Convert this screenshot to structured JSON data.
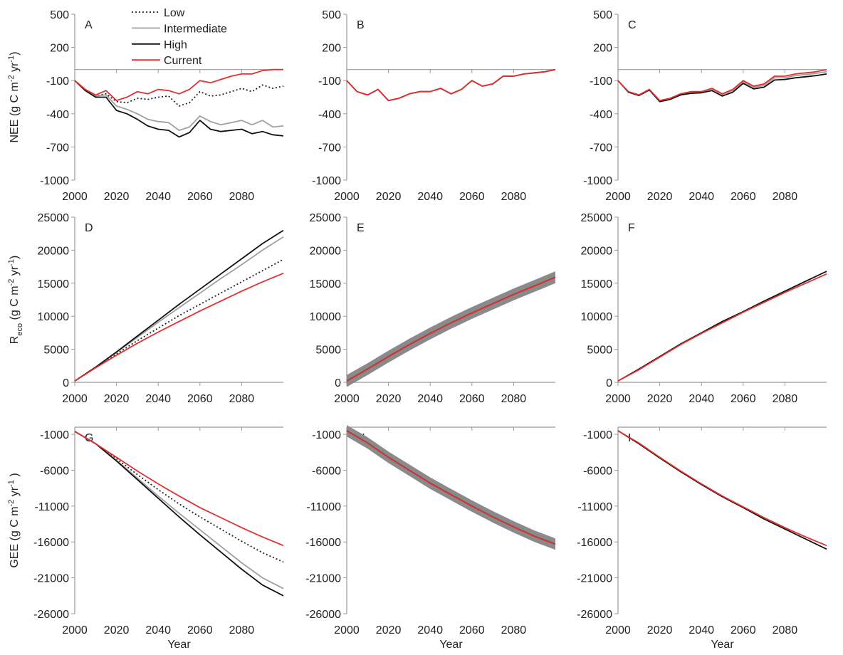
{
  "chart_data": [
    {
      "type": "line",
      "label": "A",
      "legend": "upper center",
      "ylabel": [
        {
          "text": "NEE (g C m"
        },
        {
          "text": "-2",
          "shift": "super"
        },
        {
          "text": " yr"
        },
        {
          "text": "-1",
          "shift": "super"
        },
        {
          "text": ")"
        }
      ],
      "x": [
        2000,
        2005,
        2010,
        2015,
        2020,
        2025,
        2030,
        2035,
        2040,
        2045,
        2050,
        2055,
        2060,
        2065,
        2070,
        2075,
        2080,
        2085,
        2090,
        2095,
        2100
      ],
      "xlim": [
        2000,
        2100
      ],
      "xticks": [
        2000,
        2020,
        2040,
        2060,
        2080
      ],
      "ylim": [
        -1000,
        500
      ],
      "yticks": [
        -1000,
        -700,
        -400,
        -100,
        200,
        500
      ],
      "series": [
        {
          "name": "Low",
          "color": "#222222",
          "dash": "dotted",
          "values": [
            -100,
            -180,
            -240,
            -220,
            -290,
            -300,
            -260,
            -270,
            -250,
            -240,
            -330,
            -300,
            -200,
            -240,
            -230,
            -200,
            -170,
            -200,
            -140,
            -170,
            -150
          ]
        },
        {
          "name": "Intermediate",
          "color": "#a0a0a0",
          "values": [
            -100,
            -180,
            -240,
            -230,
            -330,
            -360,
            -400,
            -450,
            -470,
            -480,
            -550,
            -520,
            -420,
            -470,
            -500,
            -480,
            -460,
            -500,
            -460,
            -520,
            -510
          ]
        },
        {
          "name": "High",
          "color": "#111111",
          "values": [
            -100,
            -190,
            -250,
            -250,
            -370,
            -400,
            -450,
            -510,
            -540,
            -550,
            -610,
            -570,
            -460,
            -540,
            -560,
            -550,
            -540,
            -580,
            -560,
            -590,
            -600
          ]
        },
        {
          "name": "Current",
          "color": "#e0312f",
          "values": [
            -100,
            -180,
            -230,
            -190,
            -280,
            -250,
            -200,
            -220,
            -180,
            -190,
            -220,
            -180,
            -100,
            -120,
            -90,
            -60,
            -40,
            -40,
            -10,
            0,
            0
          ]
        }
      ]
    },
    {
      "type": "line",
      "label": "B",
      "x": [
        2000,
        2005,
        2010,
        2015,
        2020,
        2025,
        2030,
        2035,
        2040,
        2045,
        2050,
        2055,
        2060,
        2065,
        2070,
        2075,
        2080,
        2085,
        2090,
        2095,
        2100
      ],
      "xlim": [
        2000,
        2100
      ],
      "xticks": [
        2000,
        2020,
        2040,
        2060,
        2080
      ],
      "ylim": [
        -1000,
        500
      ],
      "yticks": [
        -1000,
        -700,
        -400,
        -100,
        200,
        500
      ],
      "series": [
        {
          "color": "#111111",
          "values": [
            -100,
            -200,
            -230,
            -180,
            -280,
            -260,
            -220,
            -200,
            -200,
            -170,
            -220,
            -180,
            -100,
            -150,
            -130,
            -60,
            -60,
            -40,
            -30,
            -20,
            0
          ]
        },
        {
          "color": "#e0312f",
          "values": [
            -100,
            -200,
            -230,
            -180,
            -280,
            -260,
            -220,
            -200,
            -200,
            -170,
            -220,
            -180,
            -100,
            -150,
            -130,
            -60,
            -60,
            -40,
            -30,
            -20,
            0
          ]
        }
      ]
    },
    {
      "type": "line",
      "label": "C",
      "x": [
        2000,
        2005,
        2010,
        2015,
        2020,
        2025,
        2030,
        2035,
        2040,
        2045,
        2050,
        2055,
        2060,
        2065,
        2070,
        2075,
        2080,
        2085,
        2090,
        2095,
        2100
      ],
      "xlim": [
        2000,
        2100
      ],
      "xticks": [
        2000,
        2020,
        2040,
        2060,
        2080
      ],
      "ylim": [
        -1000,
        500
      ],
      "yticks": [
        -1000,
        -700,
        -400,
        -100,
        200,
        500
      ],
      "series": [
        {
          "color": "#a0a0a0",
          "values": [
            -100,
            -200,
            -230,
            -180,
            -280,
            -260,
            -220,
            -205,
            -200,
            -175,
            -225,
            -190,
            -110,
            -160,
            -145,
            -75,
            -75,
            -55,
            -45,
            -35,
            -20
          ]
        },
        {
          "color": "#111111",
          "values": [
            -100,
            -205,
            -235,
            -185,
            -290,
            -270,
            -230,
            -215,
            -210,
            -190,
            -240,
            -205,
            -125,
            -175,
            -160,
            -95,
            -90,
            -75,
            -65,
            -55,
            -40
          ]
        },
        {
          "color": "#e0312f",
          "values": [
            -100,
            -200,
            -230,
            -180,
            -280,
            -260,
            -220,
            -200,
            -200,
            -170,
            -220,
            -180,
            -100,
            -150,
            -130,
            -60,
            -60,
            -40,
            -30,
            -20,
            0
          ]
        }
      ]
    },
    {
      "type": "line",
      "label": "D",
      "ylabel": [
        {
          "text": "R"
        },
        {
          "text": "eco",
          "shift": "sub"
        },
        {
          "text": " (g C m"
        },
        {
          "text": "-2",
          "shift": "super"
        },
        {
          "text": " yr"
        },
        {
          "text": "-1",
          "shift": "super"
        },
        {
          "text": ")"
        }
      ],
      "x": [
        2000,
        2010,
        2020,
        2030,
        2040,
        2050,
        2060,
        2070,
        2080,
        2090,
        2100
      ],
      "xlim": [
        2000,
        2100
      ],
      "xticks": [
        2000,
        2020,
        2040,
        2060,
        2080
      ],
      "ylim": [
        0,
        25000
      ],
      "yticks": [
        0,
        5000,
        10000,
        15000,
        20000,
        25000
      ],
      "series": [
        {
          "color": "#222222",
          "dash": "dotted",
          "values": [
            200,
            2200,
            4300,
            6300,
            8200,
            10100,
            11800,
            13500,
            15200,
            16900,
            18600
          ]
        },
        {
          "color": "#a0a0a0",
          "values": [
            200,
            2300,
            4500,
            6800,
            9100,
            11300,
            13500,
            15700,
            17800,
            20000,
            22000
          ]
        },
        {
          "color": "#111111",
          "values": [
            200,
            2300,
            4600,
            7000,
            9400,
            11800,
            14100,
            16400,
            18700,
            21000,
            23000
          ]
        },
        {
          "color": "#e0312f",
          "values": [
            200,
            2200,
            4100,
            5900,
            7600,
            9200,
            10800,
            12300,
            13800,
            15200,
            16500
          ]
        }
      ]
    },
    {
      "type": "line",
      "label": "E",
      "x": [
        2000,
        2010,
        2020,
        2030,
        2040,
        2050,
        2060,
        2070,
        2080,
        2090,
        2100
      ],
      "xlim": [
        2000,
        2100
      ],
      "xticks": [
        2000,
        2020,
        2040,
        2060,
        2080
      ],
      "ylim": [
        0,
        25000
      ],
      "yticks": [
        0,
        5000,
        10000,
        15000,
        20000,
        25000
      ],
      "bands": [
        {
          "color": "#8a8a8a",
          "lower": [
            -700,
            1100,
            3000,
            4800,
            6500,
            8100,
            9600,
            11000,
            12400,
            13700,
            15000
          ],
          "upper": [
            1100,
            2900,
            4800,
            6600,
            8300,
            9900,
            11400,
            12800,
            14200,
            15500,
            16800
          ]
        }
      ],
      "series": [
        {
          "color": "#111111",
          "values": [
            200,
            2000,
            3900,
            5700,
            7400,
            9000,
            10500,
            11900,
            13300,
            14600,
            15900
          ]
        },
        {
          "color": "#e0312f",
          "values": [
            200,
            2000,
            3900,
            5700,
            7400,
            9000,
            10500,
            11900,
            13300,
            14600,
            15900
          ]
        }
      ]
    },
    {
      "type": "line",
      "label": "F",
      "x": [
        2000,
        2010,
        2020,
        2030,
        2040,
        2050,
        2060,
        2070,
        2080,
        2090,
        2100
      ],
      "xlim": [
        2000,
        2100
      ],
      "xticks": [
        2000,
        2020,
        2040,
        2060,
        2080
      ],
      "ylim": [
        0,
        25000
      ],
      "yticks": [
        0,
        5000,
        10000,
        15000,
        20000,
        25000
      ],
      "series": [
        {
          "color": "#111111",
          "values": [
            200,
            2000,
            3900,
            5800,
            7500,
            9200,
            10700,
            12300,
            13800,
            15300,
            16800
          ]
        },
        {
          "color": "#e0312f",
          "values": [
            200,
            1900,
            3800,
            5700,
            7400,
            9000,
            10600,
            12100,
            13600,
            15000,
            16400
          ]
        }
      ]
    },
    {
      "type": "line",
      "label": "G",
      "xlabel": "Year",
      "ylabel": [
        {
          "text": "GEE (g C m"
        },
        {
          "text": "-2",
          "shift": "super"
        },
        {
          "text": " yr"
        },
        {
          "text": "-1",
          "shift": "super"
        },
        {
          "text": " )"
        }
      ],
      "x": [
        2000,
        2010,
        2020,
        2030,
        2040,
        2050,
        2060,
        2070,
        2080,
        2090,
        2100
      ],
      "xlim": [
        2000,
        2100
      ],
      "xticks": [
        2000,
        2020,
        2040,
        2060,
        2080
      ],
      "ylim": [
        -26000,
        0
      ],
      "yticks": [
        -26000,
        -21000,
        -16000,
        -11000,
        -6000,
        -1000
      ],
      "series": [
        {
          "color": "#222222",
          "dash": "dotted",
          "values": [
            -600,
            -2300,
            -4400,
            -6600,
            -8700,
            -10700,
            -12500,
            -14200,
            -15900,
            -17500,
            -18800
          ]
        },
        {
          "color": "#a0a0a0",
          "values": [
            -600,
            -2300,
            -4600,
            -7100,
            -9600,
            -12000,
            -14300,
            -16600,
            -18900,
            -21000,
            -22500
          ]
        },
        {
          "color": "#111111",
          "values": [
            -600,
            -2300,
            -4700,
            -7300,
            -9900,
            -12500,
            -15000,
            -17400,
            -19800,
            -22000,
            -23500
          ]
        },
        {
          "color": "#e0312f",
          "values": [
            -600,
            -2300,
            -4200,
            -6100,
            -7900,
            -9600,
            -11200,
            -12600,
            -14000,
            -15300,
            -16500
          ]
        }
      ]
    },
    {
      "type": "line",
      "label": "H",
      "xlabel": "Year",
      "x": [
        2000,
        2010,
        2020,
        2030,
        2040,
        2050,
        2060,
        2070,
        2080,
        2090,
        2100
      ],
      "xlim": [
        2000,
        2100
      ],
      "xticks": [
        2000,
        2020,
        2040,
        2060,
        2080
      ],
      "ylim": [
        -26000,
        0
      ],
      "yticks": [
        -26000,
        -21000,
        -16000,
        -11000,
        -6000,
        -1000
      ],
      "bands": [
        {
          "color": "#8a8a8a",
          "lower": [
            -1300,
            -3000,
            -5000,
            -6800,
            -8600,
            -10200,
            -11800,
            -13300,
            -14700,
            -16000,
            -17100
          ],
          "upper": [
            300,
            -1400,
            -3400,
            -5200,
            -7000,
            -8600,
            -10200,
            -11700,
            -13100,
            -14400,
            -15500
          ]
        }
      ],
      "series": [
        {
          "color": "#111111",
          "values": [
            -500,
            -2200,
            -4200,
            -6000,
            -7800,
            -9400,
            -11000,
            -12500,
            -13900,
            -15200,
            -16300
          ]
        },
        {
          "color": "#e0312f",
          "values": [
            -500,
            -2200,
            -4200,
            -6000,
            -7800,
            -9400,
            -11000,
            -12500,
            -13900,
            -15200,
            -16300
          ]
        }
      ]
    },
    {
      "type": "line",
      "label": "I",
      "xlabel": "Year",
      "x": [
        2000,
        2010,
        2020,
        2030,
        2040,
        2050,
        2060,
        2070,
        2080,
        2090,
        2100
      ],
      "xlim": [
        2000,
        2100
      ],
      "xticks": [
        2000,
        2020,
        2040,
        2060,
        2080
      ],
      "ylim": [
        -26000,
        0
      ],
      "yticks": [
        -26000,
        -21000,
        -16000,
        -11000,
        -6000,
        -1000
      ],
      "series": [
        {
          "color": "#111111",
          "values": [
            -500,
            -2300,
            -4300,
            -6200,
            -8000,
            -9700,
            -11200,
            -12800,
            -14200,
            -15600,
            -17000
          ]
        },
        {
          "color": "#e0312f",
          "values": [
            -500,
            -2200,
            -4200,
            -6100,
            -7900,
            -9600,
            -11100,
            -12600,
            -14000,
            -15300,
            -16500
          ]
        }
      ]
    }
  ]
}
